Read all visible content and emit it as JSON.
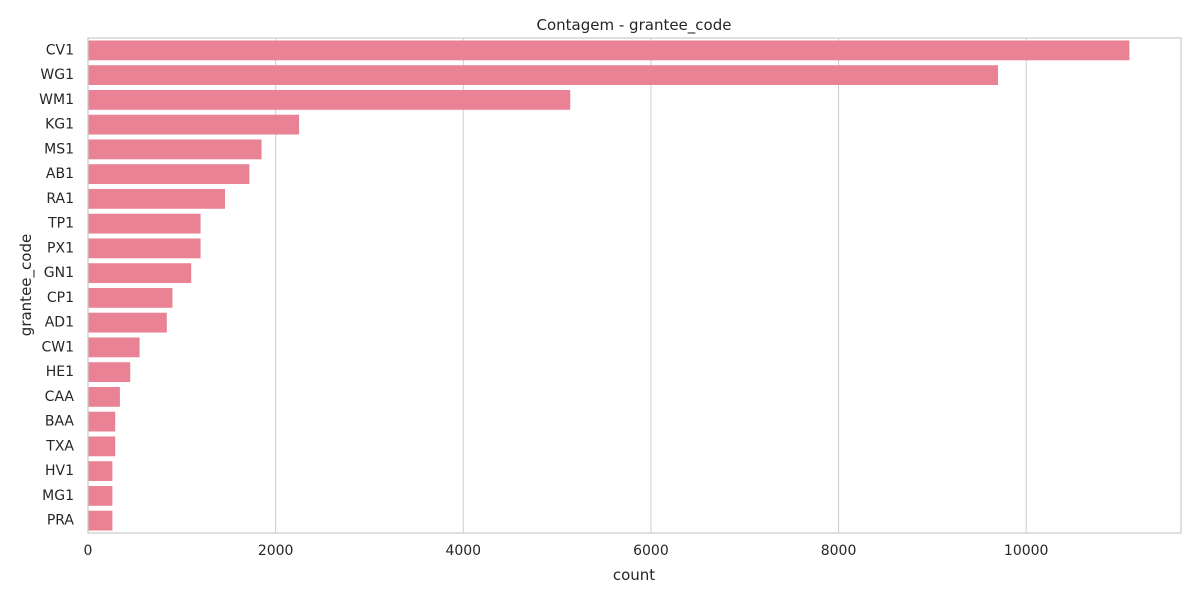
{
  "chart_data": {
    "type": "bar",
    "orientation": "horizontal",
    "title": "Contagem - grantee_code",
    "xlabel": "count",
    "ylabel": "grantee_code",
    "categories": [
      "CV1",
      "WG1",
      "WM1",
      "KG1",
      "MS1",
      "AB1",
      "RA1",
      "TP1",
      "PX1",
      "GN1",
      "CP1",
      "AD1",
      "CW1",
      "HE1",
      "CAA",
      "BAA",
      "TXA",
      "HV1",
      "MG1",
      "PRA"
    ],
    "values": [
      11100,
      9700,
      5140,
      2250,
      1850,
      1720,
      1460,
      1200,
      1200,
      1100,
      900,
      840,
      550,
      450,
      340,
      290,
      290,
      260,
      260,
      260
    ],
    "xlim": [
      0,
      11650
    ],
    "xticks": [
      0,
      2000,
      4000,
      6000,
      8000,
      10000
    ],
    "xtick_labels": [
      "0",
      "2000",
      "4000",
      "6000",
      "8000",
      "10000"
    ],
    "grid": "vertical",
    "bar_color": "#e98294",
    "grid_color": "#cccccc",
    "spine_color": "#cccccc"
  }
}
